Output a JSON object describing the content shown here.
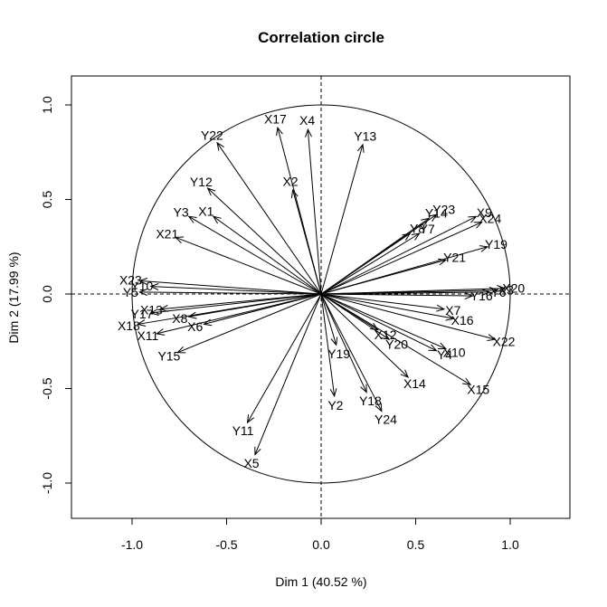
{
  "chart_data": {
    "type": "scatter",
    "title": "Correlation circle",
    "xlabel": "Dim 1 (40.52 %)",
    "ylabel": "Dim 2 (17.99 %)",
    "xlim": [
      -1.32,
      1.32
    ],
    "ylim": [
      -1.2,
      1.2
    ],
    "xticks": [
      -1.0,
      -0.5,
      0.0,
      0.5,
      1.0
    ],
    "yticks": [
      -1.0,
      -0.5,
      0.0,
      0.5,
      1.0
    ],
    "xtick_labels": [
      "-1.0",
      "-0.5",
      "0.0",
      "0.5",
      "1.0"
    ],
    "ytick_labels": [
      "-1.0",
      "-0.5",
      "0.0",
      "0.5",
      "1.0"
    ],
    "unit_circle": true,
    "reference_lines": "dashed x=0 and y=0",
    "grid": false,
    "legend": "none",
    "arrows": [
      {
        "name": "X17",
        "x": -0.23,
        "y": 0.88
      },
      {
        "name": "X4",
        "x": -0.07,
        "y": 0.87
      },
      {
        "name": "Y13",
        "x": 0.22,
        "y": 0.79
      },
      {
        "name": "Y22",
        "x": -0.55,
        "y": 0.8
      },
      {
        "name": "X2",
        "x": -0.15,
        "y": 0.55
      },
      {
        "name": "Y12",
        "x": -0.6,
        "y": 0.56
      },
      {
        "name": "Y3",
        "x": -0.7,
        "y": 0.41
      },
      {
        "name": "X1",
        "x": -0.57,
        "y": 0.41
      },
      {
        "name": "X21",
        "x": -0.77,
        "y": 0.3
      },
      {
        "name": "Y23",
        "x": 0.61,
        "y": 0.42
      },
      {
        "name": "Y14",
        "x": 0.57,
        "y": 0.4
      },
      {
        "name": "X9",
        "x": 0.82,
        "y": 0.41
      },
      {
        "name": "X24",
        "x": 0.85,
        "y": 0.38
      },
      {
        "name": "Y8",
        "x": 0.47,
        "y": 0.32
      },
      {
        "name": "Y7",
        "x": 0.52,
        "y": 0.32
      },
      {
        "name": "Y19",
        "x": 0.88,
        "y": 0.25
      },
      {
        "name": "Y21",
        "x": 0.66,
        "y": 0.18
      },
      {
        "name": "X23",
        "x": -0.96,
        "y": 0.07
      },
      {
        "name": "Y5",
        "x": -0.96,
        "y": 0.01
      },
      {
        "name": "Y10",
        "x": -0.9,
        "y": 0.04
      },
      {
        "name": "X20",
        "x": 0.97,
        "y": 0.03
      },
      {
        "name": "X3",
        "x": 0.93,
        "y": 0.02
      },
      {
        "name": "Y6",
        "x": 0.89,
        "y": 0.01
      },
      {
        "name": "Y16",
        "x": 0.8,
        "y": -0.01
      },
      {
        "name": "X13",
        "x": -0.85,
        "y": -0.08
      },
      {
        "name": "Y17",
        "x": -0.9,
        "y": -0.1
      },
      {
        "name": "X8",
        "x": -0.7,
        "y": -0.12
      },
      {
        "name": "X6",
        "x": -0.62,
        "y": -0.16
      },
      {
        "name": "X18",
        "x": -0.97,
        "y": -0.16
      },
      {
        "name": "X11",
        "x": -0.87,
        "y": -0.21
      },
      {
        "name": "Y15",
        "x": -0.76,
        "y": -0.31
      },
      {
        "name": "X7",
        "x": 0.65,
        "y": -0.08
      },
      {
        "name": "X16",
        "x": 0.7,
        "y": -0.13
      },
      {
        "name": "X22",
        "x": 0.92,
        "y": -0.24
      },
      {
        "name": "X12",
        "x": 0.3,
        "y": -0.19
      },
      {
        "name": "Y20",
        "x": 0.36,
        "y": -0.24
      },
      {
        "name": "X10",
        "x": 0.66,
        "y": -0.29
      },
      {
        "name": "Y4",
        "x": 0.61,
        "y": -0.3
      },
      {
        "name": "Y19",
        "x": 0.08,
        "y": -0.27
      },
      {
        "name": "X14",
        "x": 0.46,
        "y": -0.44
      },
      {
        "name": "X15",
        "x": 0.79,
        "y": -0.48
      },
      {
        "name": "Y18",
        "x": 0.24,
        "y": -0.52
      },
      {
        "name": "Y24",
        "x": 0.32,
        "y": -0.62
      },
      {
        "name": "Y2",
        "x": 0.07,
        "y": -0.54
      },
      {
        "name": "Y11",
        "x": -0.39,
        "y": -0.68
      },
      {
        "name": "X5",
        "x": -0.35,
        "y": -0.85
      }
    ],
    "label_offsets": {}
  }
}
